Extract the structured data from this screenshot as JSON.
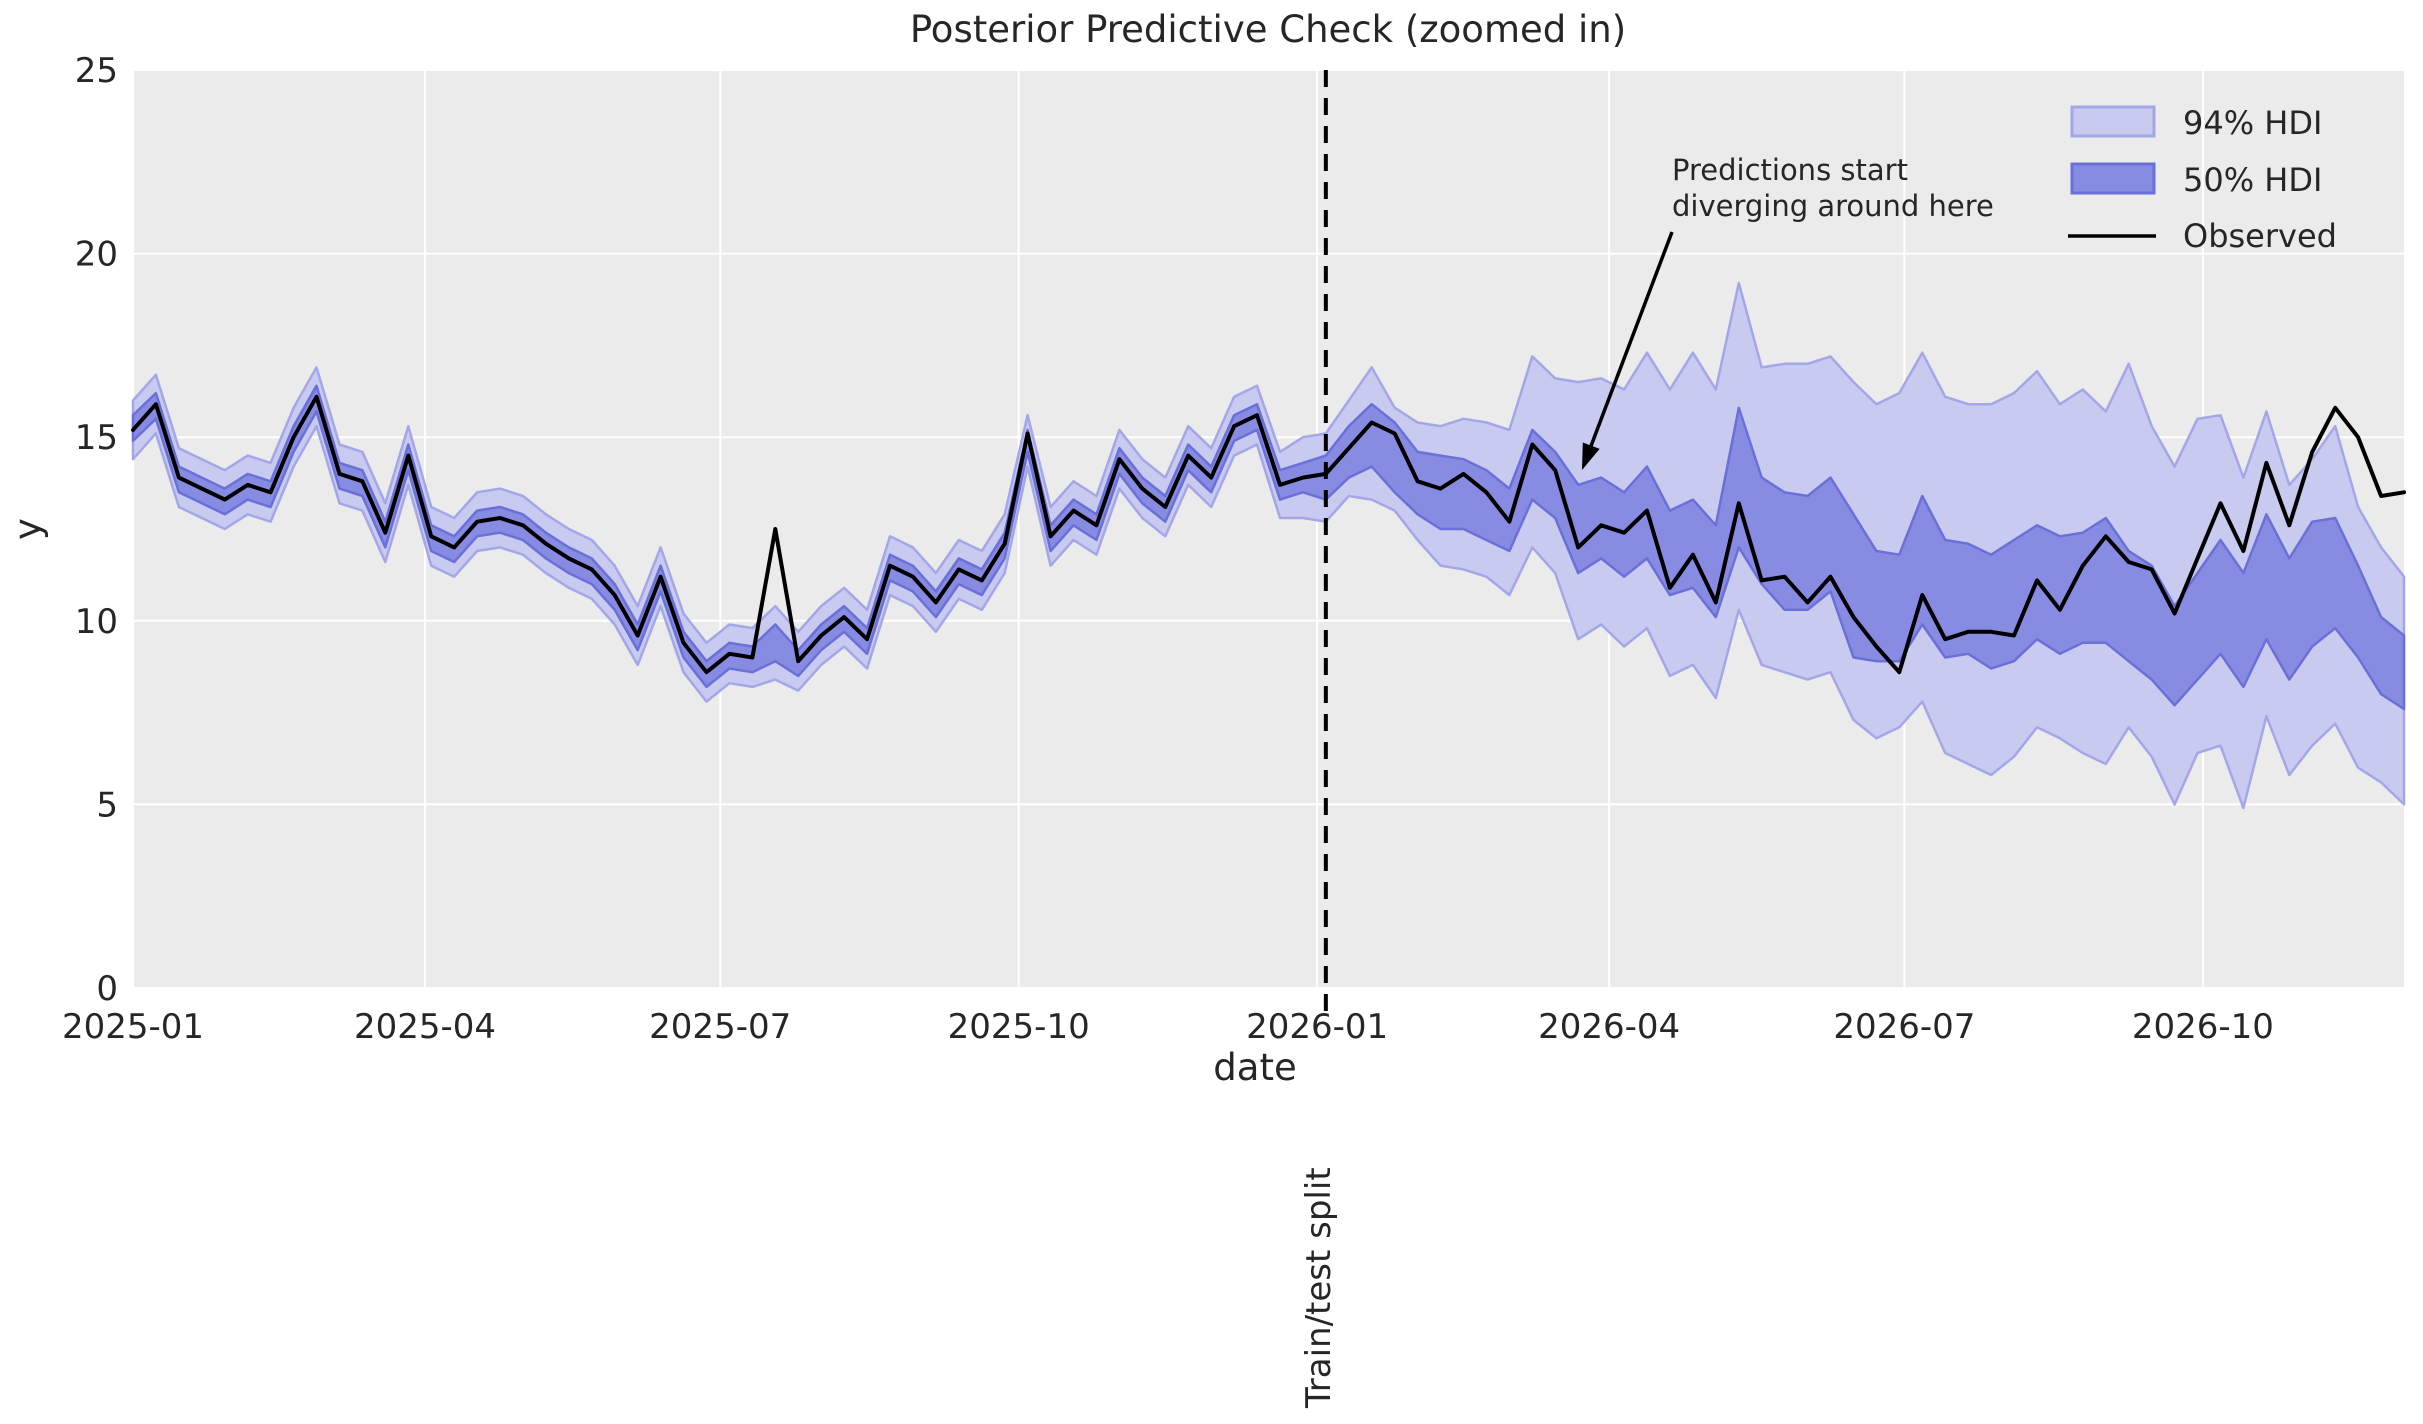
{
  "figure": {
    "title": "Posterior Predictive Check (zoomed in)"
  },
  "axes": {
    "xlabel": "date",
    "ylabel": "y",
    "y_ticks": [
      0,
      5,
      10,
      15,
      20,
      25
    ],
    "x_ticks": [
      {
        "label": "2025-01",
        "day": 0
      },
      {
        "label": "2025-04",
        "day": 90
      },
      {
        "label": "2025-07",
        "day": 181
      },
      {
        "label": "2025-10",
        "day": 273
      },
      {
        "label": "2026-01",
        "day": 365
      },
      {
        "label": "2026-04",
        "day": 455
      },
      {
        "label": "2026-07",
        "day": 546
      },
      {
        "label": "2026-10",
        "day": 638
      }
    ]
  },
  "legend": {
    "items": [
      {
        "label": "94% HDI",
        "type": "patch"
      },
      {
        "label": "50% HDI",
        "type": "patch"
      },
      {
        "label": "Observed",
        "type": "line"
      }
    ]
  },
  "annotation": {
    "line1": "Predictions start",
    "line2": "diverging around here"
  },
  "split_label": "Train/test split",
  "chart_data": {
    "type": "line",
    "title": "Posterior Predictive Check (zoomed in)",
    "xlabel": "date",
    "ylabel": "y",
    "ylim": [
      0,
      25
    ],
    "x_start_date": "2025-01-01",
    "x_step_days": 7,
    "n_points": 100,
    "split_index": 52,
    "split_date": "2026-01-01",
    "legend_position": "upper right",
    "grid": true,
    "series": [
      {
        "name": "Observed",
        "values": [
          15.2,
          15.9,
          13.9,
          13.6,
          13.3,
          13.7,
          13.5,
          15.0,
          16.1,
          14.0,
          13.8,
          12.4,
          14.5,
          12.3,
          12.0,
          12.7,
          12.8,
          12.6,
          12.1,
          11.7,
          11.4,
          10.7,
          9.6,
          11.2,
          9.4,
          8.6,
          9.1,
          9.0,
          12.5,
          8.9,
          9.6,
          10.1,
          9.5,
          11.5,
          11.2,
          10.5,
          11.4,
          11.1,
          12.1,
          15.1,
          12.3,
          13.0,
          12.6,
          14.4,
          13.6,
          13.1,
          14.5,
          13.9,
          15.3,
          15.6,
          13.7,
          13.9,
          14.0,
          14.7,
          15.4,
          15.1,
          13.8,
          13.6,
          14.0,
          13.5,
          12.7,
          14.8,
          14.1,
          12.0,
          12.6,
          12.4,
          13.0,
          10.9,
          11.8,
          10.5,
          13.2,
          11.1,
          11.2,
          10.5,
          11.2,
          10.1,
          9.3,
          8.6,
          10.7,
          9.5,
          9.7,
          9.7,
          9.6,
          11.1,
          10.3,
          11.5,
          12.3,
          11.6,
          11.4,
          10.2,
          11.7,
          13.2,
          11.9,
          14.3,
          12.6,
          14.6,
          15.8,
          15.0,
          13.4,
          13.5
        ]
      },
      {
        "name": "94% HDI upper",
        "values": [
          16.0,
          16.7,
          14.7,
          14.4,
          14.1,
          14.5,
          14.3,
          15.8,
          16.9,
          14.8,
          14.6,
          13.2,
          15.3,
          13.1,
          12.8,
          13.5,
          13.6,
          13.4,
          12.9,
          12.5,
          12.2,
          11.5,
          10.4,
          12.0,
          10.2,
          9.4,
          9.9,
          9.8,
          10.4,
          9.7,
          10.4,
          10.9,
          10.3,
          12.3,
          12.0,
          11.3,
          12.2,
          11.9,
          12.9,
          15.6,
          13.1,
          13.8,
          13.4,
          15.2,
          14.4,
          13.9,
          15.3,
          14.7,
          16.1,
          16.4,
          14.6,
          15.0,
          15.1,
          16.0,
          16.9,
          15.8,
          15.4,
          15.3,
          15.5,
          15.4,
          15.2,
          17.2,
          16.6,
          16.5,
          16.6,
          16.3,
          17.3,
          16.3,
          17.3,
          16.3,
          19.2,
          16.9,
          17.0,
          17.0,
          17.2,
          16.5,
          15.9,
          16.2,
          17.3,
          16.1,
          15.9,
          15.9,
          16.2,
          16.8,
          15.9,
          16.3,
          15.7,
          17.0,
          15.3,
          14.2,
          15.5,
          15.6,
          13.9,
          15.7,
          13.7,
          14.4,
          15.3,
          13.1,
          12.0,
          11.2
        ]
      },
      {
        "name": "94% HDI lower",
        "values": [
          14.4,
          15.1,
          13.1,
          12.8,
          12.5,
          12.9,
          12.7,
          14.2,
          15.3,
          13.2,
          13.0,
          11.6,
          13.7,
          11.5,
          11.2,
          11.9,
          12.0,
          11.8,
          11.3,
          10.9,
          10.6,
          9.9,
          8.8,
          10.4,
          8.6,
          7.8,
          8.3,
          8.2,
          8.4,
          8.1,
          8.8,
          9.3,
          8.7,
          10.7,
          10.4,
          9.7,
          10.6,
          10.3,
          11.3,
          14.2,
          11.5,
          12.2,
          11.8,
          13.6,
          12.8,
          12.3,
          13.7,
          13.1,
          14.5,
          14.8,
          12.8,
          12.8,
          12.7,
          13.4,
          13.3,
          13.0,
          12.2,
          11.5,
          11.4,
          11.2,
          10.7,
          12.0,
          11.3,
          9.5,
          9.9,
          9.3,
          9.8,
          8.5,
          8.8,
          7.9,
          10.3,
          8.8,
          8.6,
          8.4,
          8.6,
          7.3,
          6.8,
          7.1,
          7.8,
          6.4,
          6.1,
          5.8,
          6.3,
          7.1,
          6.8,
          6.4,
          6.1,
          7.1,
          6.3,
          5.0,
          6.4,
          6.6,
          4.9,
          7.4,
          5.8,
          6.6,
          7.2,
          6.0,
          5.6,
          5.0
        ]
      },
      {
        "name": "50% HDI upper",
        "values": [
          15.6,
          16.2,
          14.2,
          13.9,
          13.6,
          14.0,
          13.8,
          15.3,
          16.4,
          14.3,
          14.1,
          12.7,
          14.8,
          12.6,
          12.3,
          13.0,
          13.1,
          12.9,
          12.4,
          12.0,
          11.7,
          11.0,
          9.9,
          11.5,
          9.7,
          8.9,
          9.4,
          9.3,
          9.9,
          9.2,
          9.9,
          10.4,
          9.8,
          11.8,
          11.5,
          10.8,
          11.7,
          11.4,
          12.4,
          15.2,
          12.6,
          13.3,
          12.9,
          14.7,
          13.9,
          13.4,
          14.8,
          14.2,
          15.6,
          15.9,
          14.1,
          14.3,
          14.5,
          15.3,
          15.9,
          15.4,
          14.6,
          14.5,
          14.4,
          14.1,
          13.6,
          15.2,
          14.6,
          13.7,
          13.9,
          13.5,
          14.2,
          13.0,
          13.3,
          12.6,
          15.8,
          13.9,
          13.5,
          13.4,
          13.9,
          12.9,
          11.9,
          11.8,
          13.4,
          12.2,
          12.1,
          11.8,
          12.2,
          12.6,
          12.3,
          12.4,
          12.8,
          11.9,
          11.5,
          10.4,
          11.3,
          12.2,
          11.3,
          12.9,
          11.7,
          12.7,
          12.8,
          11.5,
          10.1,
          9.6
        ]
      },
      {
        "name": "50% HDI lower",
        "values": [
          14.9,
          15.5,
          13.5,
          13.2,
          12.9,
          13.3,
          13.1,
          14.6,
          15.7,
          13.6,
          13.4,
          12.0,
          14.1,
          11.9,
          11.6,
          12.3,
          12.4,
          12.2,
          11.7,
          11.3,
          11.0,
          10.3,
          9.2,
          10.8,
          9.0,
          8.2,
          8.7,
          8.6,
          8.9,
          8.5,
          9.2,
          9.7,
          9.1,
          11.1,
          10.8,
          10.1,
          11.0,
          10.7,
          11.7,
          14.6,
          11.9,
          12.6,
          12.2,
          14.0,
          13.2,
          12.7,
          14.1,
          13.5,
          14.9,
          15.2,
          13.3,
          13.5,
          13.3,
          13.9,
          14.2,
          13.5,
          12.9,
          12.5,
          12.5,
          12.2,
          11.9,
          13.3,
          12.8,
          11.3,
          11.7,
          11.2,
          11.7,
          10.7,
          10.9,
          10.1,
          12.0,
          11.0,
          10.3,
          10.3,
          10.8,
          9.0,
          8.9,
          8.9,
          9.9,
          9.0,
          9.1,
          8.7,
          8.9,
          9.5,
          9.1,
          9.4,
          9.4,
          8.9,
          8.4,
          7.7,
          8.4,
          9.1,
          8.2,
          9.5,
          8.4,
          9.3,
          9.8,
          9.0,
          8.0,
          7.6
        ]
      }
    ],
    "colors": {
      "hdi94_fill": "#c8caf0",
      "hdi94_edge": "#a3a7e8",
      "hdi50_fill": "#878ce2",
      "hdi50_edge": "#6a70d8",
      "observed": "#000000",
      "split_line": "#000000",
      "plot_background": "#ebebeb",
      "grid": "#ffffff",
      "text": "#262626"
    }
  }
}
